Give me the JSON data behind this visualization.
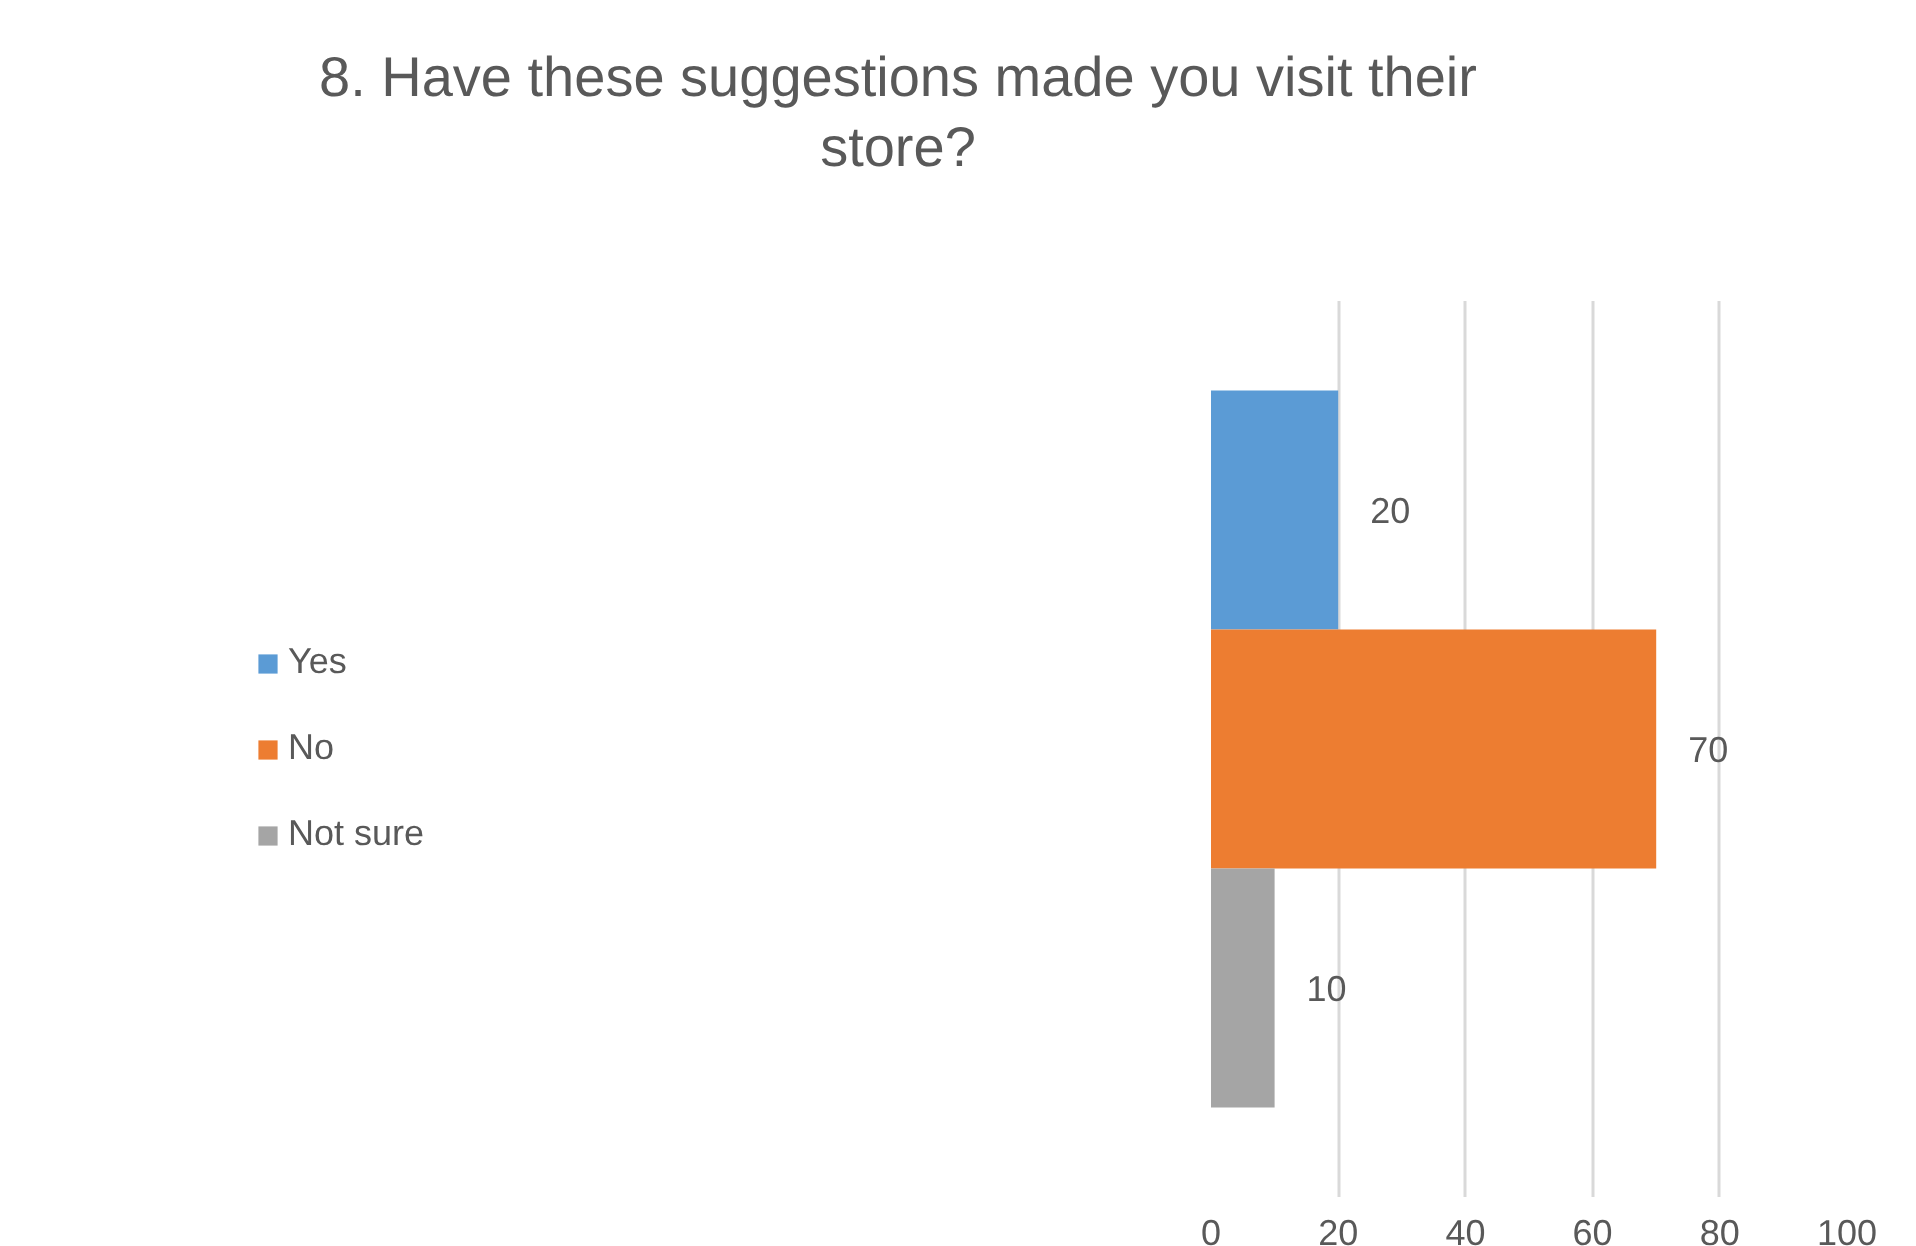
{
  "chart_data": {
    "type": "bar",
    "orientation": "horizontal",
    "title": "8. Have these suggestions made you visit their store?",
    "categories": [
      null
    ],
    "series": [
      {
        "name": "Yes",
        "color": "#5b9bd5",
        "values": [
          20
        ]
      },
      {
        "name": "No",
        "color": "#ed7d31",
        "values": [
          70
        ]
      },
      {
        "name": "Not sure",
        "color": "#a5a5a5",
        "values": [
          10
        ]
      }
    ],
    "xlim": [
      0,
      100
    ],
    "xticks": [
      0,
      20,
      40,
      60,
      80,
      100
    ],
    "grid": "x",
    "legend": "left",
    "data_labels": true
  }
}
